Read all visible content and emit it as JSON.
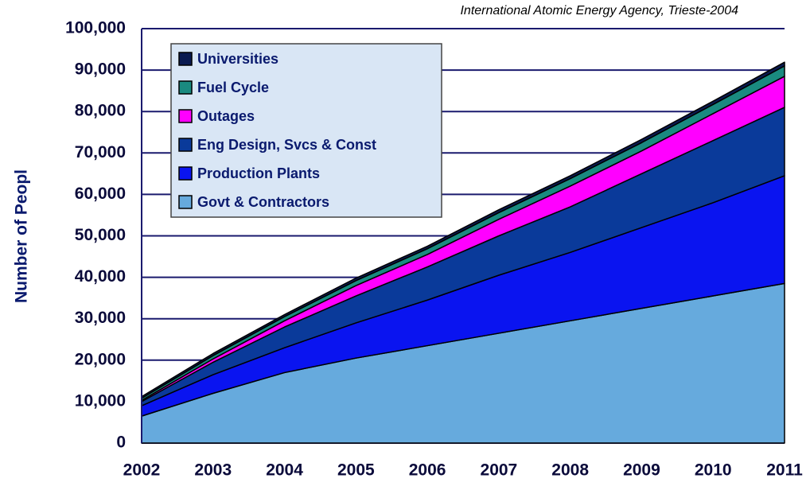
{
  "chart_data": {
    "type": "stacked_area",
    "annotation": "International Atomic Energy Agency, Trieste-2004",
    "y_label": "Number of Peopl",
    "categories": [
      "2002",
      "2003",
      "2004",
      "2005",
      "2006",
      "2007",
      "2008",
      "2009",
      "2010",
      "2011"
    ],
    "series": [
      {
        "name": "Govt & Contractors",
        "color": "#66aadd",
        "values": [
          6500,
          12000,
          17000,
          20500,
          23500,
          26500,
          29500,
          32500,
          35500,
          38500
        ]
      },
      {
        "name": "Production Plants",
        "color": "#0a14f0",
        "values": [
          2500,
          4500,
          6000,
          8500,
          11000,
          14000,
          16500,
          19500,
          22500,
          26000
        ]
      },
      {
        "name": "Eng Design, Svcs & Const",
        "color": "#0a3a9a",
        "values": [
          1000,
          3000,
          5000,
          6500,
          8000,
          9500,
          11000,
          13000,
          15000,
          16500
        ]
      },
      {
        "name": "Outages",
        "color": "#ff00ff",
        "values": [
          300,
          800,
          1500,
          2500,
          3000,
          4000,
          5000,
          5500,
          6500,
          7500
        ]
      },
      {
        "name": "Fuel Cycle",
        "color": "#1a8a80",
        "values": [
          500,
          800,
          1000,
          1200,
          1400,
          1600,
          1800,
          2000,
          2200,
          2500
        ]
      },
      {
        "name": "Universities",
        "color": "#0a1a50",
        "values": [
          400,
          500,
          500,
          600,
          600,
          700,
          700,
          800,
          800,
          900
        ]
      }
    ],
    "ylim": [
      0,
      100000
    ],
    "yticks": [
      0,
      {
        "value": 10000,
        "label": "10,000"
      },
      {
        "value": 20000,
        "label": "20,000"
      },
      {
        "value": 30000,
        "label": "30,000"
      },
      {
        "value": 40000,
        "label": "40,000"
      },
      {
        "value": 50000,
        "label": "50,000"
      },
      {
        "value": 60000,
        "label": "60,000"
      },
      {
        "value": 70000,
        "label": "70,000"
      },
      {
        "value": 80000,
        "label": "80,000"
      },
      {
        "value": 90000,
        "label": "90,000"
      },
      {
        "value": 100000,
        "label": "100,000"
      }
    ],
    "grid": true,
    "legend": "upper left"
  }
}
